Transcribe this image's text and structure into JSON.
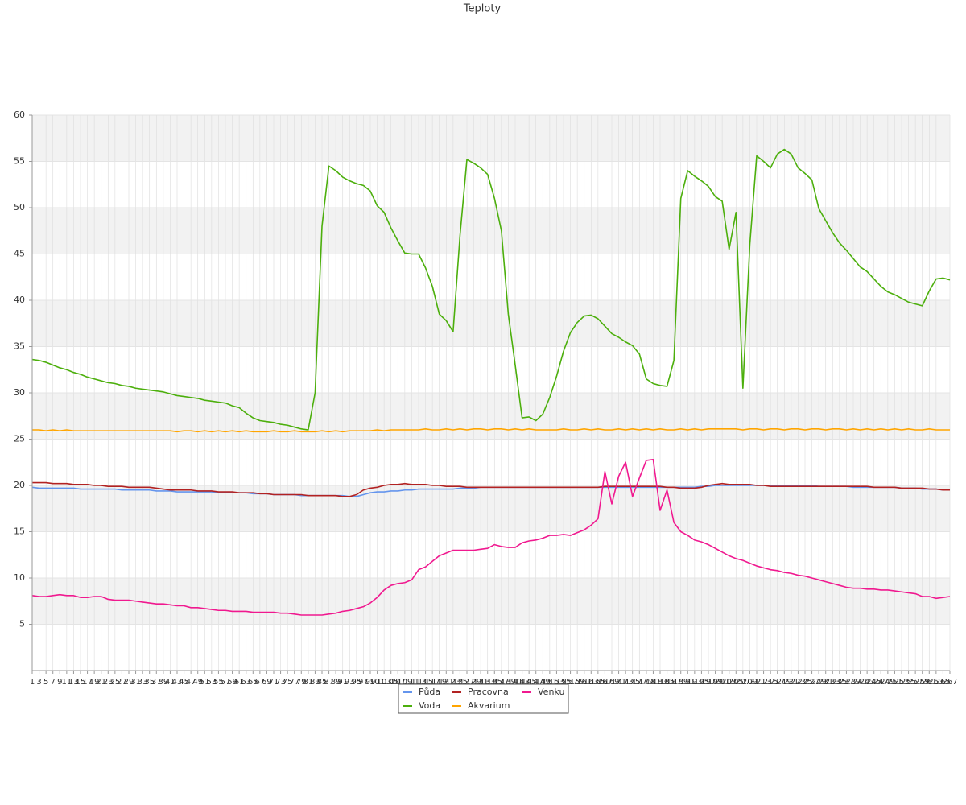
{
  "chart_data": {
    "type": "line",
    "title": "Teploty",
    "x": [
      1,
      3,
      5,
      7,
      9,
      11,
      13,
      15,
      17,
      19,
      21,
      23,
      25,
      27,
      29,
      31,
      33,
      35,
      37,
      39,
      41,
      43,
      45,
      47,
      49,
      51,
      53,
      55,
      57,
      59,
      61,
      63,
      65,
      67,
      69,
      71,
      73,
      75,
      77,
      79,
      81,
      83,
      85,
      87,
      89,
      91,
      93,
      95,
      97,
      99,
      101,
      103,
      105,
      107,
      109,
      111,
      113,
      115,
      117,
      119,
      121,
      123,
      125,
      127,
      129,
      131,
      133,
      135,
      137,
      139,
      141,
      143,
      145,
      147,
      149,
      151,
      153,
      155,
      157,
      159,
      161,
      163,
      165,
      167,
      169,
      171,
      173,
      175,
      177,
      179,
      181,
      183,
      185,
      187,
      189,
      191,
      193,
      195,
      197,
      199,
      201,
      203,
      205,
      207,
      209,
      211,
      213,
      215,
      217,
      219,
      221,
      223,
      225,
      227,
      229,
      231,
      233,
      235,
      237,
      239,
      241,
      243,
      245,
      247,
      249,
      251,
      253,
      255,
      257,
      259,
      261,
      263,
      265,
      267
    ],
    "xlim": [
      1,
      267
    ],
    "ylim": [
      0,
      60
    ],
    "yticks": [
      5,
      10,
      15,
      20,
      25,
      30,
      35,
      40,
      45,
      50,
      55,
      60
    ],
    "grid": true,
    "legend": "bottom",
    "series": [
      {
        "name": "Půda",
        "color": "#6495ed",
        "values": [
          19.8,
          19.7,
          19.7,
          19.7,
          19.7,
          19.7,
          19.7,
          19.6,
          19.6,
          19.6,
          19.6,
          19.6,
          19.6,
          19.5,
          19.5,
          19.5,
          19.5,
          19.5,
          19.4,
          19.4,
          19.4,
          19.3,
          19.3,
          19.3,
          19.3,
          19.3,
          19.3,
          19.2,
          19.2,
          19.2,
          19.2,
          19.2,
          19.1,
          19.1,
          19.1,
          19.0,
          19.0,
          19.0,
          19.0,
          18.9,
          18.9,
          18.9,
          18.9,
          18.9,
          18.9,
          18.9,
          18.8,
          18.8,
          19.0,
          19.2,
          19.3,
          19.3,
          19.4,
          19.4,
          19.5,
          19.5,
          19.6,
          19.6,
          19.6,
          19.6,
          19.6,
          19.6,
          19.7,
          19.7,
          19.7,
          19.8,
          19.8,
          19.8,
          19.8,
          19.8,
          19.8,
          19.8,
          19.8,
          19.8,
          19.8,
          19.8,
          19.8,
          19.8,
          19.8,
          19.8,
          19.8,
          19.8,
          19.8,
          19.8,
          19.8,
          19.8,
          19.8,
          19.8,
          19.8,
          19.8,
          19.8,
          19.8,
          19.8,
          19.8,
          19.8,
          19.8,
          19.8,
          19.9,
          19.9,
          20.0,
          20.0,
          20.0,
          20.0,
          20.0,
          20.0,
          20.0,
          20.0,
          20.0,
          20.0,
          20.0,
          20.0,
          20.0,
          20.0,
          20.0,
          19.9,
          19.9,
          19.9,
          19.9,
          19.9,
          19.8,
          19.8,
          19.8,
          19.8,
          19.8,
          19.8,
          19.8,
          19.7,
          19.7,
          19.7,
          19.6,
          19.6,
          19.6,
          19.5,
          19.5
        ]
      },
      {
        "name": "Voda",
        "color": "#4caf0c",
        "values": [
          33.6,
          33.5,
          33.3,
          33,
          32.7,
          32.5,
          32.2,
          32,
          31.7,
          31.5,
          31.3,
          31.1,
          31,
          30.8,
          30.7,
          30.5,
          30.4,
          30.3,
          30.2,
          30.1,
          29.9,
          29.7,
          29.6,
          29.5,
          29.4,
          29.2,
          29.1,
          29,
          28.9,
          28.6,
          28.4,
          27.8,
          27.3,
          27,
          26.9,
          26.8,
          26.6,
          26.5,
          26.3,
          26.1,
          26,
          30,
          48,
          54.5,
          54,
          53.3,
          52.9,
          52.6,
          52.4,
          51.8,
          50.2,
          49.5,
          47.8,
          46.4,
          45.1,
          45,
          45,
          43.5,
          41.5,
          38.5,
          37.8,
          36.6,
          47,
          55.2,
          54.8,
          54.3,
          53.6,
          51,
          47.5,
          38.5,
          33,
          27.3,
          27.4,
          27,
          27.7,
          29.5,
          31.8,
          34.5,
          36.5,
          37.6,
          38.3,
          38.4,
          38,
          37.2,
          36.4,
          36,
          35.5,
          35.1,
          34.2,
          31.5,
          31,
          30.8,
          30.7,
          33.5,
          51,
          54,
          53.4,
          52.9,
          52.3,
          51.2,
          50.7,
          45.5,
          49.5,
          30.5,
          46,
          55.6,
          55,
          54.3,
          55.8,
          56.3,
          55.8,
          54.3,
          53.7,
          53,
          49.9,
          48.6,
          47.3,
          46.2,
          45.4,
          44.5,
          43.6,
          43.1,
          42.3,
          41.5,
          40.9,
          40.6,
          40.2,
          39.8,
          39.6,
          39.4,
          41,
          42.3,
          42.4,
          42.2
        ]
      },
      {
        "name": "Pracovna",
        "color": "#b22222",
        "values": [
          20.3,
          20.3,
          20.3,
          20.2,
          20.2,
          20.2,
          20.1,
          20.1,
          20.1,
          20.0,
          20.0,
          19.9,
          19.9,
          19.9,
          19.8,
          19.8,
          19.8,
          19.8,
          19.7,
          19.6,
          19.5,
          19.5,
          19.5,
          19.5,
          19.4,
          19.4,
          19.4,
          19.3,
          19.3,
          19.3,
          19.2,
          19.2,
          19.2,
          19.1,
          19.1,
          19.0,
          19.0,
          19.0,
          19.0,
          19.0,
          18.9,
          18.9,
          18.9,
          18.9,
          18.9,
          18.8,
          18.8,
          19.0,
          19.5,
          19.7,
          19.8,
          20.0,
          20.1,
          20.1,
          20.2,
          20.1,
          20.1,
          20.1,
          20.0,
          20.0,
          19.9,
          19.9,
          19.9,
          19.8,
          19.8,
          19.8,
          19.8,
          19.8,
          19.8,
          19.8,
          19.8,
          19.8,
          19.8,
          19.8,
          19.8,
          19.8,
          19.8,
          19.8,
          19.8,
          19.8,
          19.8,
          19.8,
          19.8,
          19.9,
          19.9,
          19.9,
          19.9,
          19.9,
          19.9,
          19.9,
          19.9,
          19.9,
          19.8,
          19.8,
          19.7,
          19.7,
          19.7,
          19.8,
          20.0,
          20.1,
          20.2,
          20.1,
          20.1,
          20.1,
          20.1,
          20.0,
          20.0,
          19.9,
          19.9,
          19.9,
          19.9,
          19.9,
          19.9,
          19.9,
          19.9,
          19.9,
          19.9,
          19.9,
          19.9,
          19.9,
          19.9,
          19.9,
          19.8,
          19.8,
          19.8,
          19.8,
          19.7,
          19.7,
          19.7,
          19.7,
          19.6,
          19.6,
          19.5,
          19.5
        ]
      },
      {
        "name": "Akvarium",
        "color": "#ffa500",
        "values": [
          26.0,
          26.0,
          25.9,
          26.0,
          25.9,
          26.0,
          25.9,
          25.9,
          25.9,
          25.9,
          25.9,
          25.9,
          25.9,
          25.9,
          25.9,
          25.9,
          25.9,
          25.9,
          25.9,
          25.9,
          25.9,
          25.8,
          25.9,
          25.9,
          25.8,
          25.9,
          25.8,
          25.9,
          25.8,
          25.9,
          25.8,
          25.9,
          25.8,
          25.8,
          25.8,
          25.9,
          25.8,
          25.8,
          25.9,
          25.8,
          25.8,
          25.8,
          25.9,
          25.8,
          25.9,
          25.8,
          25.9,
          25.9,
          25.9,
          25.9,
          26.0,
          25.9,
          26.0,
          26.0,
          26.0,
          26.0,
          26.0,
          26.1,
          26.0,
          26.0,
          26.1,
          26.0,
          26.1,
          26.0,
          26.1,
          26.1,
          26.0,
          26.1,
          26.1,
          26.0,
          26.1,
          26.0,
          26.1,
          26.0,
          26.0,
          26.0,
          26.0,
          26.1,
          26.0,
          26.0,
          26.1,
          26.0,
          26.1,
          26.0,
          26.0,
          26.1,
          26.0,
          26.1,
          26.0,
          26.1,
          26.0,
          26.1,
          26.0,
          26.0,
          26.1,
          26.0,
          26.1,
          26.0,
          26.1,
          26.1,
          26.1,
          26.1,
          26.1,
          26.0,
          26.1,
          26.1,
          26.0,
          26.1,
          26.1,
          26.0,
          26.1,
          26.1,
          26.0,
          26.1,
          26.1,
          26.0,
          26.1,
          26.1,
          26.0,
          26.1,
          26.0,
          26.1,
          26.0,
          26.1,
          26.0,
          26.1,
          26.0,
          26.1,
          26.0,
          26.0,
          26.1,
          26.0,
          26.0,
          26.0
        ]
      },
      {
        "name": "Venku",
        "color": "#f0198f",
        "values": [
          8.1,
          8.0,
          8.0,
          8.1,
          8.2,
          8.1,
          8.1,
          7.9,
          7.9,
          8.0,
          8.0,
          7.7,
          7.6,
          7.6,
          7.6,
          7.5,
          7.4,
          7.3,
          7.2,
          7.2,
          7.1,
          7.0,
          7.0,
          6.8,
          6.8,
          6.7,
          6.6,
          6.5,
          6.5,
          6.4,
          6.4,
          6.4,
          6.3,
          6.3,
          6.3,
          6.3,
          6.2,
          6.2,
          6.1,
          6.0,
          6.0,
          6.0,
          6.0,
          6.1,
          6.2,
          6.4,
          6.5,
          6.7,
          6.9,
          7.3,
          7.9,
          8.7,
          9.2,
          9.4,
          9.5,
          9.8,
          10.9,
          11.2,
          11.8,
          12.4,
          12.7,
          13.0,
          13.0,
          13.0,
          13.0,
          13.1,
          13.2,
          13.6,
          13.4,
          13.3,
          13.3,
          13.8,
          14.0,
          14.1,
          14.3,
          14.6,
          14.6,
          14.7,
          14.6,
          14.9,
          15.2,
          15.7,
          16.4,
          21.5,
          18.0,
          21.0,
          22.5,
          18.8,
          20.8,
          22.7,
          22.8,
          17.3,
          19.5,
          16.0,
          15.0,
          14.6,
          14.1,
          13.9,
          13.6,
          13.2,
          12.8,
          12.4,
          12.1,
          11.9,
          11.6,
          11.3,
          11.1,
          10.9,
          10.8,
          10.6,
          10.5,
          10.3,
          10.2,
          10.0,
          9.8,
          9.6,
          9.4,
          9.2,
          9.0,
          8.9,
          8.9,
          8.8,
          8.8,
          8.7,
          8.7,
          8.6,
          8.5,
          8.4,
          8.3,
          8.0,
          8.0,
          7.8,
          7.9,
          8.0
        ]
      }
    ]
  }
}
